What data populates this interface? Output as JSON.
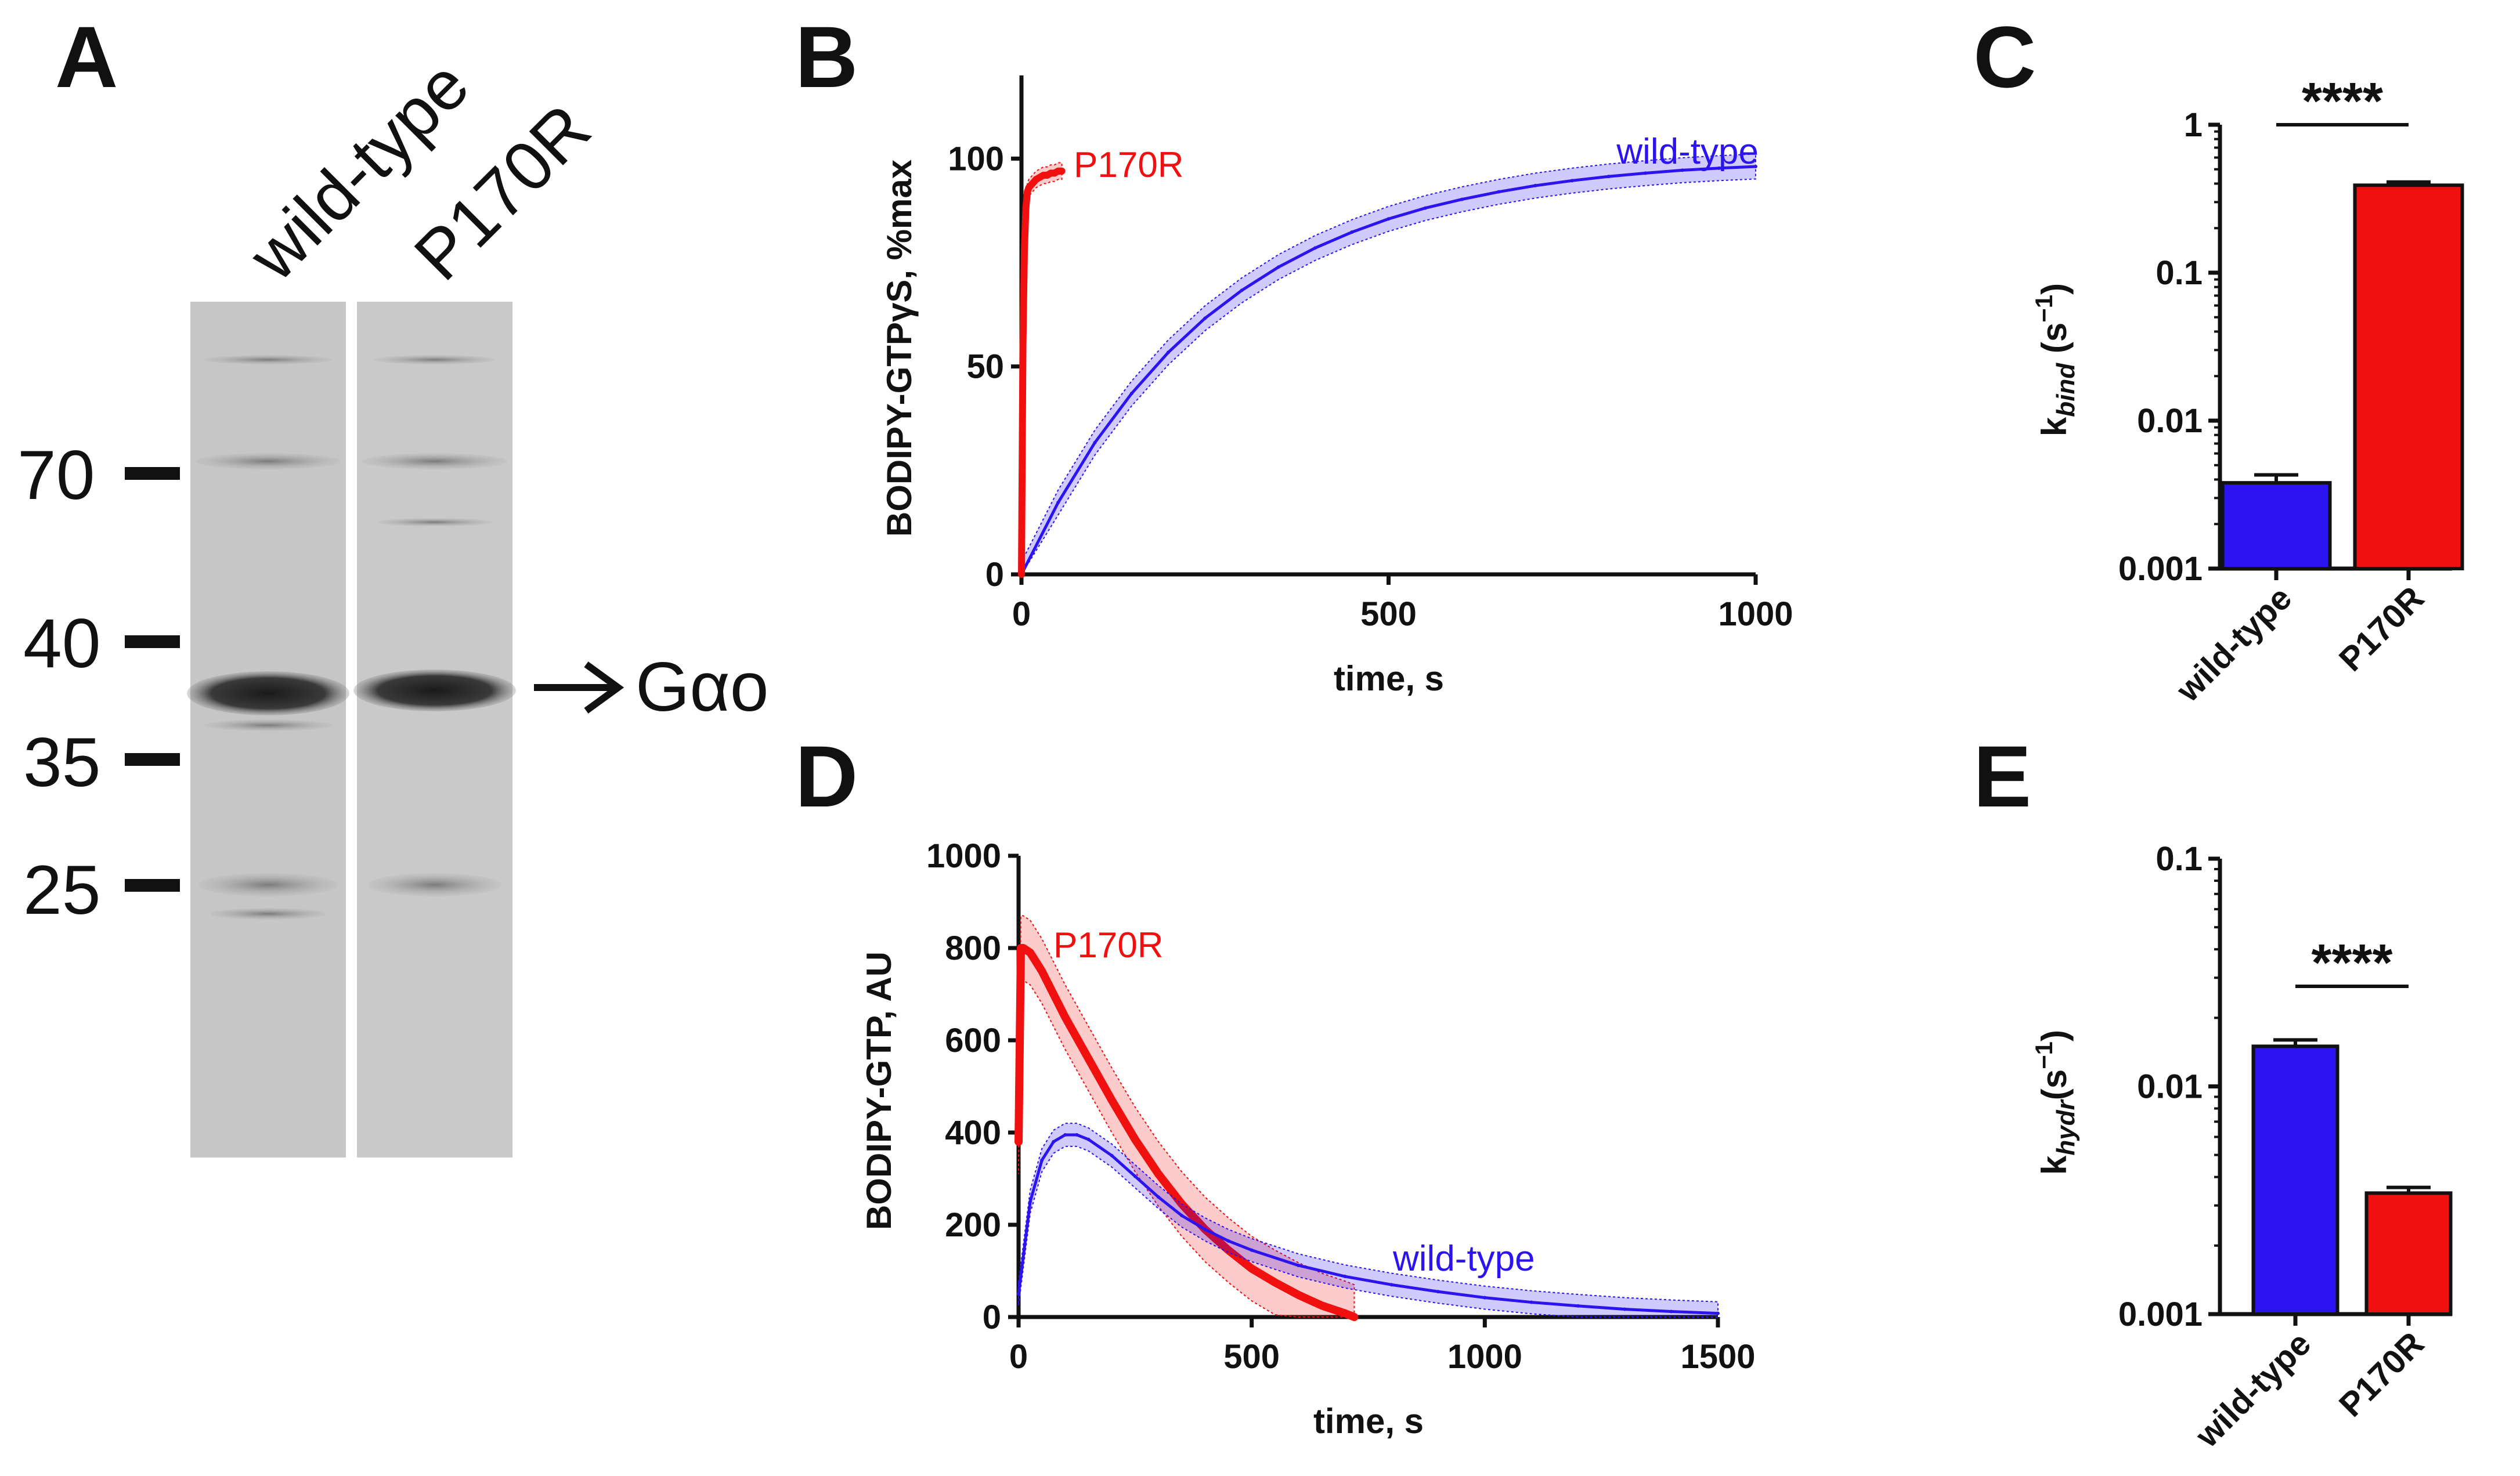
{
  "colors": {
    "wildtype": "#2b14f0",
    "p170r": "#f01010",
    "axis": "#111111",
    "gel_bg": "#c8c8c8",
    "gel_band": "#2a2a2a"
  },
  "panel_a": {
    "letter": "A",
    "lanes": [
      "wild-type",
      "P170R"
    ],
    "markers": [
      "70",
      "40",
      "35",
      "25"
    ],
    "marker_values": [
      70,
      40,
      35,
      25
    ],
    "band_label": "Gαo",
    "arrow_icon": "right-arrow-icon"
  },
  "chart_data": [
    {
      "id": "B",
      "letter": "B",
      "type": "line",
      "title": "",
      "xlabel": "time, s",
      "ylabel": "BODIPY-GTPγS,  %max",
      "xlim": [
        0,
        1000
      ],
      "ylim": [
        0,
        120
      ],
      "xticks": [
        0,
        500,
        1000
      ],
      "yticks": [
        0,
        50,
        100
      ],
      "xtick_labels": [
        "0",
        "500",
        "1000"
      ],
      "ytick_labels": [
        "0",
        "50",
        "100"
      ],
      "series": [
        {
          "name": "P170R",
          "label": "P170R",
          "color_key": "p170r",
          "x": [
            0,
            2,
            4,
            6,
            8,
            10,
            15,
            20,
            25,
            30,
            35,
            40,
            45,
            50,
            55
          ],
          "y": [
            0,
            55,
            78,
            88,
            92,
            93,
            94,
            95,
            95.5,
            96,
            96,
            96.5,
            96.5,
            97,
            97
          ],
          "band": 2
        },
        {
          "name": "wild-type",
          "label": "wild-type",
          "color_key": "wildtype",
          "x": [
            0,
            50,
            100,
            150,
            200,
            250,
            300,
            350,
            400,
            450,
            500,
            550,
            600,
            650,
            700,
            750,
            800,
            850,
            900,
            950,
            1000
          ],
          "y": [
            0,
            17.3,
            31.7,
            43.5,
            53.4,
            61.6,
            68.3,
            73.9,
            78.5,
            82.3,
            85.5,
            88.1,
            90.2,
            92.0,
            93.5,
            94.7,
            95.7,
            96.5,
            97.2,
            97.7,
            98.1
          ],
          "band": 3
        }
      ]
    },
    {
      "id": "C",
      "letter": "C",
      "type": "bar",
      "title": "",
      "xlabel": "",
      "ylabel": "k_bind (s⁻¹)",
      "ylabel_main": "k",
      "ylabel_sub": "bind",
      "ylabel_unit": " (s",
      "ylabel_sup": "−1",
      "ylabel_close": ")",
      "yscale": "log",
      "ylim": [
        0.001,
        1
      ],
      "yticks": [
        0.001,
        0.01,
        0.1,
        1
      ],
      "ytick_labels": [
        "0.001",
        "0.01",
        "0.1",
        "1"
      ],
      "categories": [
        "wild-type",
        "P170R"
      ],
      "values": [
        0.0038,
        0.39
      ],
      "errors": [
        0.0005,
        0.02
      ],
      "color_keys": [
        "wildtype",
        "p170r"
      ],
      "significance": "****"
    },
    {
      "id": "D",
      "letter": "D",
      "type": "line",
      "title": "",
      "xlabel": "time, s",
      "ylabel": "BODIPY-GTP, AU",
      "xlim": [
        0,
        1500
      ],
      "ylim": [
        0,
        1000
      ],
      "xticks": [
        0,
        500,
        1000,
        1500
      ],
      "yticks": [
        0,
        200,
        400,
        600,
        800,
        1000
      ],
      "xtick_labels": [
        "0",
        "500",
        "1000",
        "1500"
      ],
      "ytick_labels": [
        "0",
        "200",
        "400",
        "600",
        "800",
        "1000"
      ],
      "series": [
        {
          "name": "P170R",
          "label": "P170R",
          "color_key": "p170r",
          "x": [
            0,
            5,
            10,
            25,
            50,
            100,
            150,
            200,
            250,
            300,
            350,
            400,
            450,
            500,
            550,
            600,
            650,
            700,
            720
          ],
          "y": [
            380,
            800,
            800,
            790,
            750,
            650,
            560,
            470,
            385,
            310,
            245,
            190,
            145,
            105,
            75,
            48,
            25,
            8,
            0
          ],
          "band": 70
        },
        {
          "name": "wild-type",
          "label": "wild-type",
          "color_key": "wildtype",
          "x": [
            0,
            25,
            50,
            75,
            100,
            125,
            150,
            200,
            250,
            300,
            350,
            400,
            450,
            500,
            600,
            700,
            800,
            900,
            1000,
            1100,
            1200,
            1300,
            1400,
            1500
          ],
          "y": [
            50,
            250,
            340,
            380,
            395,
            395,
            385,
            350,
            305,
            260,
            220,
            190,
            165,
            145,
            112,
            88,
            70,
            55,
            42,
            32,
            24,
            17,
            12,
            8
          ],
          "band": 25
        }
      ]
    },
    {
      "id": "E",
      "letter": "E",
      "type": "bar",
      "title": "",
      "xlabel": "",
      "ylabel": "k_hydr (s⁻¹)",
      "ylabel_main": "k",
      "ylabel_sub": "hydr",
      "ylabel_unit": "(s",
      "ylabel_sup": "−1",
      "ylabel_close": ")",
      "yscale": "log",
      "ylim": [
        0.001,
        0.1
      ],
      "yticks": [
        0.001,
        0.01,
        0.1
      ],
      "ytick_labels": [
        "0.001",
        "0.01",
        "0.1"
      ],
      "categories": [
        "wild-type",
        "P170R"
      ],
      "values": [
        0.015,
        0.0034
      ],
      "errors": [
        0.001,
        0.0002
      ],
      "color_keys": [
        "wildtype",
        "p170r"
      ],
      "significance": "****"
    }
  ]
}
